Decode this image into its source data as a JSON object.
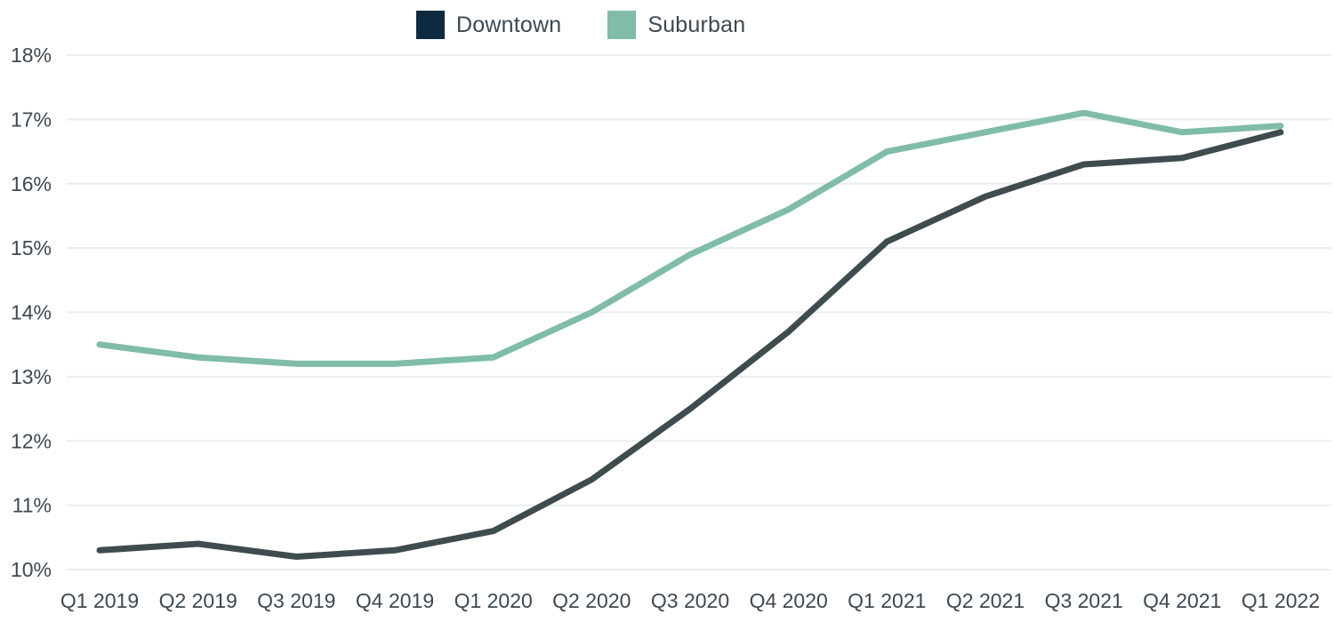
{
  "chart_data": {
    "type": "line",
    "title": "",
    "xlabel": "",
    "ylabel": "",
    "categories": [
      "Q1 2019",
      "Q2 2019",
      "Q3 2019",
      "Q4 2019",
      "Q1 2020",
      "Q2 2020",
      "Q3 2020",
      "Q4 2020",
      "Q1 2021",
      "Q2 2021",
      "Q3 2021",
      "Q4 2021",
      "Q1 2022"
    ],
    "series": [
      {
        "name": "Downtown",
        "swatch_color": "#0D2A40",
        "line_color": "#3E4C4F",
        "values": [
          10.3,
          10.4,
          10.2,
          10.3,
          10.6,
          11.4,
          12.5,
          13.7,
          15.1,
          15.8,
          16.3,
          16.4,
          16.8
        ]
      },
      {
        "name": "Suburban",
        "swatch_color": "#7FBCA9",
        "line_color": "#7FBCA9",
        "values": [
          13.5,
          13.3,
          13.2,
          13.2,
          13.3,
          14.0,
          14.9,
          15.6,
          16.5,
          16.8,
          17.1,
          16.8,
          16.9
        ]
      }
    ],
    "ylim": [
      10,
      18
    ],
    "ytick_step": 1,
    "ytick_suffix": "%",
    "yticks": [
      "10%",
      "11%",
      "12%",
      "13%",
      "14%",
      "15%",
      "16%",
      "17%",
      "18%"
    ],
    "grid": "horizontal",
    "legend_position": "top"
  },
  "colors": {
    "background": "#FFFFFF",
    "grid": "#E9EEEE",
    "axis_text": "#3C4852",
    "legend_text": "#3C4852"
  }
}
